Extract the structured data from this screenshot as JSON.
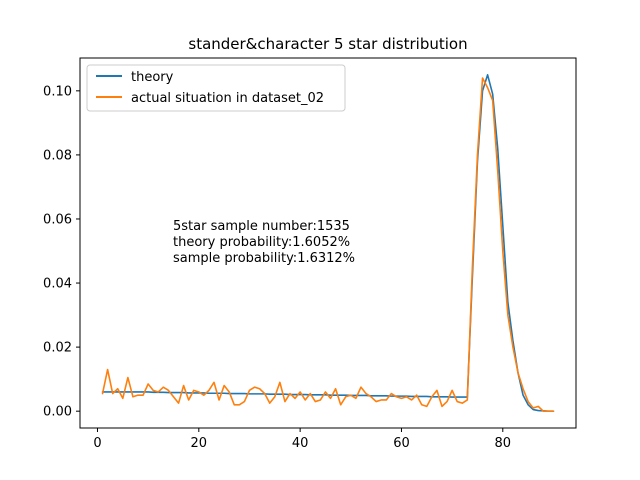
{
  "chart_data": {
    "type": "line",
    "title": "stander&character 5 star distribution",
    "xlabel": "",
    "ylabel": "",
    "xlim": [
      -3.45,
      94.45
    ],
    "ylim": [
      -0.00525,
      0.11025
    ],
    "xticks": [
      0,
      20,
      40,
      60,
      80
    ],
    "yticks": [
      0.0,
      0.02,
      0.04,
      0.06,
      0.08,
      0.1
    ],
    "ytick_labels": [
      "0.00",
      "0.02",
      "0.04",
      "0.06",
      "0.08",
      "0.10"
    ],
    "grid": false,
    "legend_position": "upper-left",
    "annotations": [
      "5star sample number:1535",
      "theory probability:1.6052%",
      "sample probability:1.6312%"
    ],
    "series": [
      {
        "name": "theory",
        "color": "#1f77b4",
        "x": [
          1,
          2,
          3,
          4,
          5,
          6,
          7,
          8,
          9,
          10,
          11,
          12,
          13,
          14,
          15,
          16,
          17,
          18,
          19,
          20,
          21,
          22,
          23,
          24,
          25,
          26,
          27,
          28,
          29,
          30,
          31,
          32,
          33,
          34,
          35,
          36,
          37,
          38,
          39,
          40,
          41,
          42,
          43,
          44,
          45,
          46,
          47,
          48,
          49,
          50,
          51,
          52,
          53,
          54,
          55,
          56,
          57,
          58,
          59,
          60,
          61,
          62,
          63,
          64,
          65,
          66,
          67,
          68,
          69,
          70,
          71,
          72,
          73,
          74,
          75,
          76,
          77,
          78,
          79,
          80,
          81,
          82,
          83,
          84,
          85,
          86,
          87,
          88,
          89,
          90
        ],
        "values": [
          0.006,
          0.006,
          0.006,
          0.006,
          0.006,
          0.006,
          0.006,
          0.006,
          0.006,
          0.006,
          0.0059,
          0.0059,
          0.0059,
          0.0058,
          0.0058,
          0.0058,
          0.0058,
          0.0057,
          0.0057,
          0.0057,
          0.0057,
          0.0056,
          0.0056,
          0.0056,
          0.0056,
          0.0055,
          0.0055,
          0.0055,
          0.0055,
          0.0054,
          0.0054,
          0.0054,
          0.0054,
          0.0053,
          0.0053,
          0.0053,
          0.0053,
          0.0052,
          0.0052,
          0.0052,
          0.0052,
          0.0051,
          0.0051,
          0.0051,
          0.0051,
          0.005,
          0.005,
          0.005,
          0.005,
          0.0049,
          0.0049,
          0.0049,
          0.0049,
          0.0048,
          0.0048,
          0.0048,
          0.0048,
          0.0047,
          0.0047,
          0.0047,
          0.0047,
          0.0046,
          0.0046,
          0.0046,
          0.0046,
          0.0045,
          0.0045,
          0.0045,
          0.0045,
          0.0044,
          0.0044,
          0.0044,
          0.0044,
          0.042,
          0.078,
          0.1,
          0.105,
          0.099,
          0.082,
          0.058,
          0.034,
          0.022,
          0.012,
          0.005,
          0.002,
          0.0005,
          0.0002,
          0.0001,
          0.0,
          0.0
        ]
      },
      {
        "name": "actual situation in dataset_02",
        "color": "#ff7f0e",
        "x": [
          1,
          2,
          3,
          4,
          5,
          6,
          7,
          8,
          9,
          10,
          11,
          12,
          13,
          14,
          15,
          16,
          17,
          18,
          19,
          20,
          21,
          22,
          23,
          24,
          25,
          26,
          27,
          28,
          29,
          30,
          31,
          32,
          33,
          34,
          35,
          36,
          37,
          38,
          39,
          40,
          41,
          42,
          43,
          44,
          45,
          46,
          47,
          48,
          49,
          50,
          51,
          52,
          53,
          54,
          55,
          56,
          57,
          58,
          59,
          60,
          61,
          62,
          63,
          64,
          65,
          66,
          67,
          68,
          69,
          70,
          71,
          72,
          73,
          74,
          75,
          76,
          77,
          78,
          79,
          80,
          81,
          82,
          83,
          84,
          85,
          86,
          87,
          88,
          89,
          90
        ],
        "values": [
          0.0055,
          0.013,
          0.0055,
          0.007,
          0.004,
          0.0105,
          0.0045,
          0.005,
          0.005,
          0.0085,
          0.0065,
          0.006,
          0.0075,
          0.0065,
          0.0045,
          0.0025,
          0.008,
          0.0035,
          0.0065,
          0.006,
          0.005,
          0.0065,
          0.009,
          0.0035,
          0.008,
          0.006,
          0.002,
          0.002,
          0.003,
          0.0065,
          0.0075,
          0.007,
          0.0055,
          0.0025,
          0.0045,
          0.009,
          0.003,
          0.0055,
          0.004,
          0.006,
          0.0035,
          0.0055,
          0.003,
          0.0035,
          0.006,
          0.004,
          0.007,
          0.002,
          0.0045,
          0.005,
          0.004,
          0.0075,
          0.0055,
          0.0045,
          0.003,
          0.0035,
          0.0035,
          0.0055,
          0.0045,
          0.004,
          0.0045,
          0.0035,
          0.005,
          0.002,
          0.0015,
          0.0045,
          0.0065,
          0.0015,
          0.003,
          0.0065,
          0.003,
          0.0025,
          0.0035,
          0.045,
          0.08,
          0.104,
          0.101,
          0.097,
          0.075,
          0.05,
          0.03,
          0.02,
          0.012,
          0.007,
          0.003,
          0.001,
          0.0015,
          0.0,
          0.0,
          0.0
        ]
      }
    ]
  }
}
